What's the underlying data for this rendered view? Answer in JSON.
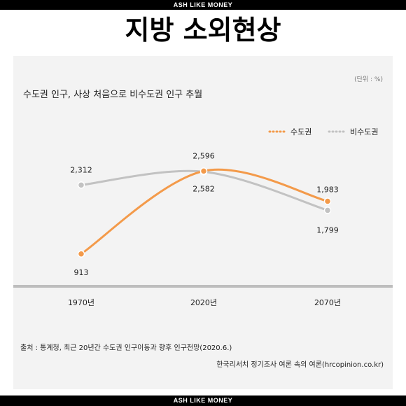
{
  "banner": {
    "top_text": "ASH LIKE MONEY",
    "bottom_text": "ASH LIKE MONEY"
  },
  "headline": "지방 소외현상",
  "card": {
    "unit": "(단위 : %)",
    "source": "출처 : 통계청, 최근 20년간 수도권 인구이동과 향후 인구전망(2020.6.)",
    "publisher": "한국리서치 정기조사 여론 속의 여론(hrcopinion.co.kr)"
  },
  "chart_data": {
    "type": "line",
    "title": "수도권 인구, 사상 처음으로 비수도권 인구 추월",
    "xlabel": "",
    "ylabel": "",
    "categories": [
      "1970년",
      "2020년",
      "2070년"
    ],
    "series": [
      {
        "name": "수도권",
        "values": [
          913,
          2596,
          1983
        ],
        "labels": [
          "913",
          "2,596",
          "1,983"
        ],
        "color": "#f39a4a"
      },
      {
        "name": "비수도권",
        "values": [
          2312,
          2582,
          1799
        ],
        "labels": [
          "2,312",
          "2,582",
          "1,799"
        ],
        "color": "#c2c2c2"
      }
    ],
    "ylim": [
      0,
      2800
    ],
    "grid": false,
    "legend": "top-right"
  }
}
